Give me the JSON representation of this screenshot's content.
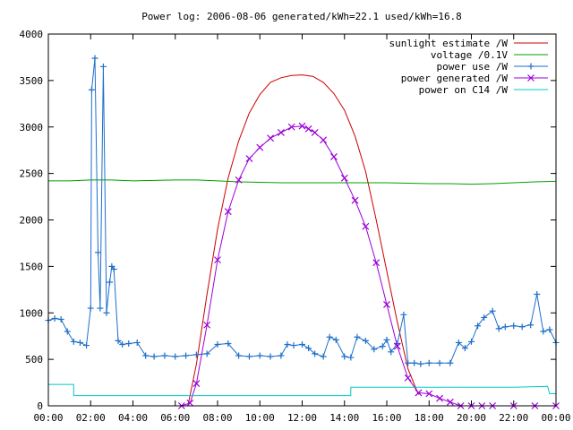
{
  "chart_data": {
    "type": "line",
    "title": "Power log: 2006-08-06 generated/kWh=22.1 used/kWh=16.8",
    "xlabel": "",
    "ylabel": "",
    "xlim": [
      0,
      24
    ],
    "ylim": [
      0,
      4000
    ],
    "grid": false,
    "legend_position": "top-right",
    "x_tick_labels": [
      "00:00",
      "02:00",
      "04:00",
      "06:00",
      "08:00",
      "10:00",
      "12:00",
      "14:00",
      "16:00",
      "18:00",
      "20:00",
      "22:00",
      "00:00"
    ],
    "y_tick_labels": [
      "0",
      "500",
      "1000",
      "1500",
      "2000",
      "2500",
      "3000",
      "3500",
      "4000"
    ],
    "series": [
      {
        "name": "sunlight estimate /W",
        "color": "#cc0000",
        "marker": "none",
        "x": [
          6.6,
          7,
          7.5,
          8,
          8.5,
          9,
          9.5,
          10,
          10.5,
          11,
          11.5,
          12,
          12.5,
          13,
          13.5,
          14,
          14.5,
          15,
          15.5,
          16,
          16.5,
          17,
          17.5
        ],
        "y": [
          0,
          450,
          1200,
          1900,
          2450,
          2850,
          3150,
          3350,
          3480,
          3530,
          3555,
          3560,
          3545,
          3480,
          3360,
          3180,
          2900,
          2520,
          2000,
          1450,
          900,
          400,
          120
        ]
      },
      {
        "name": "voltage /0.1V",
        "color": "#00a000",
        "marker": "none",
        "x": [
          0,
          1,
          2,
          3,
          4,
          5,
          6,
          7,
          8,
          9,
          10,
          11,
          12,
          13,
          14,
          15,
          16,
          17,
          18,
          19,
          20,
          21,
          22,
          23,
          24
        ],
        "y": [
          2420,
          2420,
          2430,
          2430,
          2420,
          2425,
          2430,
          2430,
          2420,
          2410,
          2405,
          2400,
          2400,
          2400,
          2400,
          2400,
          2400,
          2395,
          2390,
          2390,
          2385,
          2390,
          2400,
          2410,
          2415
        ]
      },
      {
        "name": "power use /W",
        "color": "#1e6fc8",
        "marker": "plus",
        "x": [
          0,
          0.3,
          0.6,
          0.9,
          1.2,
          1.5,
          1.8,
          2,
          2.05,
          2.2,
          2.35,
          2.45,
          2.6,
          2.75,
          2.9,
          3,
          3.1,
          3.3,
          3.5,
          3.8,
          4.2,
          4.6,
          5,
          5.5,
          6,
          6.5,
          7,
          7.5,
          8,
          8.5,
          9,
          9.5,
          10,
          10.5,
          11,
          11.3,
          11.6,
          12,
          12.3,
          12.6,
          13,
          13.3,
          13.6,
          14,
          14.3,
          14.6,
          15,
          15.4,
          15.8,
          16,
          16.2,
          16.5,
          16.8,
          17,
          17.3,
          17.6,
          18,
          18.5,
          19,
          19.4,
          19.7,
          20,
          20.3,
          20.6,
          21,
          21.3,
          21.6,
          22,
          22.4,
          22.8,
          23.1,
          23.4,
          23.7,
          24
        ],
        "y": [
          920,
          940,
          930,
          800,
          690,
          680,
          650,
          1050,
          3400,
          3740,
          1650,
          1050,
          3650,
          1000,
          1330,
          1500,
          1470,
          700,
          660,
          670,
          680,
          540,
          530,
          540,
          530,
          540,
          550,
          560,
          660,
          670,
          540,
          530,
          540,
          530,
          540,
          660,
          650,
          660,
          620,
          560,
          530,
          740,
          710,
          530,
          520,
          740,
          700,
          610,
          640,
          710,
          580,
          670,
          980,
          460,
          460,
          450,
          460,
          460,
          460,
          680,
          620,
          690,
          860,
          950,
          1020,
          830,
          850,
          860,
          850,
          870,
          1200,
          800,
          820,
          680
        ]
      },
      {
        "name": "power generated /W",
        "color": "#9b00d6",
        "marker": "cross",
        "x": [
          6.3,
          6.7,
          7,
          7.5,
          8,
          8.5,
          9,
          9.5,
          10,
          10.5,
          11,
          11.5,
          12,
          12.3,
          12.6,
          13,
          13.5,
          14,
          14.5,
          15,
          15.5,
          16,
          16.5,
          17,
          17.5,
          18,
          18.5,
          19,
          19.5,
          20,
          20.5,
          21,
          22,
          23,
          24
        ],
        "y": [
          0,
          30,
          240,
          870,
          1570,
          2090,
          2430,
          2660,
          2780,
          2880,
          2940,
          3000,
          3010,
          2980,
          2940,
          2860,
          2680,
          2450,
          2210,
          1930,
          1540,
          1090,
          640,
          300,
          140,
          130,
          80,
          40,
          0,
          0,
          0,
          0,
          0,
          0,
          0
        ]
      },
      {
        "name": "power on C14 /W",
        "color": "#00c8c8",
        "marker": "none",
        "x": [
          0,
          1.2,
          1.2,
          14.3,
          14.3,
          16,
          18,
          20,
          22,
          23.6,
          23.7,
          24
        ],
        "y": [
          230,
          230,
          110,
          110,
          200,
          200,
          200,
          200,
          200,
          210,
          130,
          130
        ]
      }
    ]
  }
}
